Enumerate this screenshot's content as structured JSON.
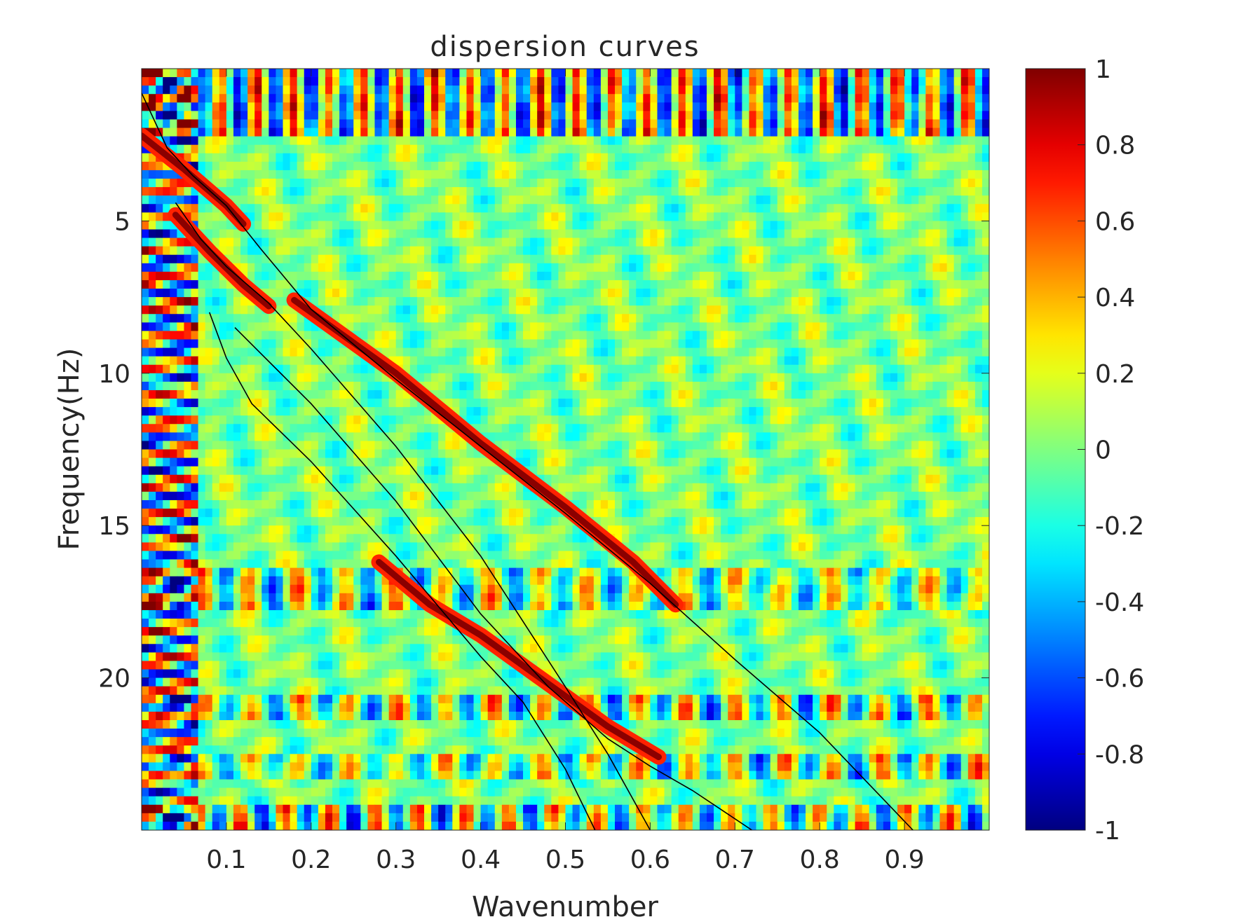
{
  "chart_data": {
    "type": "heatmap",
    "title": "dispersion curves",
    "xlabel": "Wavenumber",
    "ylabel": "Frequency(Hz)",
    "xlim": [
      0.0,
      1.0
    ],
    "ylim": [
      0.0,
      25.0
    ],
    "y_reversed": true,
    "x_ticks": [
      0.1,
      0.2,
      0.3,
      0.4,
      0.5,
      0.6,
      0.7,
      0.8,
      0.9
    ],
    "x_tick_labels": [
      "0.1",
      "0.2",
      "0.3",
      "0.4",
      "0.5",
      "0.6",
      "0.7",
      "0.8",
      "0.9"
    ],
    "y_ticks": [
      5,
      10,
      15,
      20
    ],
    "y_tick_labels": [
      "5",
      "10",
      "15",
      "20"
    ],
    "colormap": "jet",
    "clim": [
      -1,
      1
    ],
    "colorbar": {
      "ticks": [
        1,
        0.8,
        0.6,
        0.4,
        0.2,
        0,
        -0.2,
        -0.4,
        -0.6,
        -0.8,
        -1
      ],
      "tick_labels": [
        "1",
        "0.8",
        "0.6",
        "0.4",
        "0.2",
        "0",
        "-0.2",
        "-0.4",
        "-0.6",
        "-0.8",
        "-1"
      ]
    },
    "ridges": [
      {
        "name": "ridge-1",
        "points": [
          [
            0.0,
            2.2
          ],
          [
            0.05,
            3.3
          ],
          [
            0.1,
            4.5
          ],
          [
            0.12,
            5.1
          ]
        ]
      },
      {
        "name": "ridge-2",
        "points": [
          [
            0.04,
            4.8
          ],
          [
            0.08,
            6.0
          ],
          [
            0.12,
            7.1
          ],
          [
            0.15,
            7.8
          ]
        ]
      },
      {
        "name": "ridge-3",
        "points": [
          [
            0.18,
            7.6
          ],
          [
            0.3,
            10.0
          ],
          [
            0.4,
            12.3
          ],
          [
            0.5,
            14.4
          ],
          [
            0.58,
            16.2
          ],
          [
            0.63,
            17.6
          ]
        ]
      },
      {
        "name": "ridge-4",
        "points": [
          [
            0.28,
            16.2
          ],
          [
            0.34,
            17.6
          ],
          [
            0.4,
            18.6
          ],
          [
            0.47,
            20.0
          ],
          [
            0.55,
            21.6
          ],
          [
            0.61,
            22.6
          ]
        ]
      }
    ],
    "curves": [
      {
        "name": "mode-curve-1",
        "points": [
          [
            0.0,
            0.8
          ],
          [
            0.03,
            2.6
          ],
          [
            0.06,
            3.5
          ],
          [
            0.1,
            4.5
          ],
          [
            0.14,
            5.9
          ],
          [
            0.2,
            7.9
          ],
          [
            0.3,
            10.2
          ],
          [
            0.4,
            12.4
          ],
          [
            0.5,
            14.6
          ],
          [
            0.6,
            16.9
          ],
          [
            0.64,
            17.9
          ],
          [
            0.7,
            19.4
          ],
          [
            0.8,
            21.8
          ],
          [
            0.91,
            25.0
          ]
        ]
      },
      {
        "name": "mode-curve-2",
        "points": [
          [
            0.04,
            4.4
          ],
          [
            0.07,
            5.6
          ],
          [
            0.1,
            6.5
          ],
          [
            0.15,
            7.7
          ],
          [
            0.2,
            9.2
          ],
          [
            0.3,
            12.4
          ],
          [
            0.4,
            16.0
          ],
          [
            0.5,
            20.3
          ],
          [
            0.55,
            22.5
          ],
          [
            0.6,
            25.0
          ]
        ]
      },
      {
        "name": "mode-curve-3",
        "points": [
          [
            0.11,
            8.5
          ],
          [
            0.2,
            11.0
          ],
          [
            0.3,
            14.2
          ],
          [
            0.4,
            17.9
          ],
          [
            0.48,
            20.3
          ],
          [
            0.55,
            22.0
          ],
          [
            0.6,
            22.9
          ],
          [
            0.65,
            23.7
          ],
          [
            0.72,
            25.0
          ]
        ]
      },
      {
        "name": "mode-curve-4",
        "points": [
          [
            0.08,
            8.0
          ],
          [
            0.1,
            9.5
          ],
          [
            0.13,
            11.0
          ],
          [
            0.2,
            12.9
          ],
          [
            0.3,
            16.0
          ],
          [
            0.4,
            19.3
          ],
          [
            0.45,
            20.8
          ],
          [
            0.5,
            23.0
          ],
          [
            0.535,
            25.0
          ]
        ]
      }
    ]
  }
}
